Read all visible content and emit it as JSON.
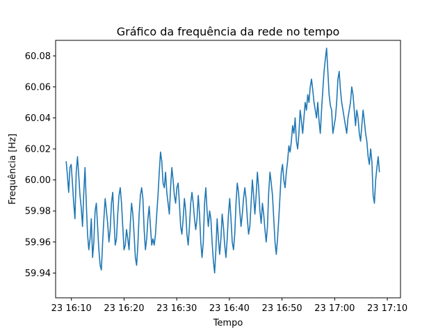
{
  "chart_data": {
    "type": "line",
    "title": "Gráfico da frequência da rede no tempo",
    "xlabel": "Tempo",
    "ylabel": "Frequência [Hz]",
    "x_ticks": [
      "23 16:10",
      "23 16:20",
      "23 16:30",
      "23 16:40",
      "23 16:50",
      "23 17:00",
      "23 17:10"
    ],
    "y_ticks": [
      "59.94",
      "59.96",
      "59.98",
      "60.00",
      "60.02",
      "60.04",
      "60.06",
      "60.08"
    ],
    "x_range_minutes": [
      -3.0,
      62.5
    ],
    "x_tick_minutes": [
      0,
      10,
      20,
      30,
      40,
      50,
      60
    ],
    "ylim": [
      59.924,
      60.09
    ],
    "grid": false,
    "legend": "none",
    "series": [
      {
        "color": "#1f77b4",
        "x_start_minute": -1.0,
        "x_end_minute": 58.5,
        "values": [
          60.012,
          60.003,
          59.992,
          60.008,
          60.01,
          59.998,
          59.985,
          59.975,
          60.005,
          60.015,
          60.003,
          59.99,
          59.982,
          59.97,
          59.992,
          60.008,
          59.985,
          59.965,
          59.955,
          59.962,
          59.975,
          59.95,
          59.96,
          59.98,
          59.985,
          59.97,
          59.955,
          59.945,
          59.942,
          59.96,
          59.975,
          59.988,
          59.98,
          59.972,
          59.96,
          59.968,
          59.985,
          59.992,
          59.975,
          59.958,
          59.962,
          59.978,
          59.99,
          59.995,
          59.985,
          59.97,
          59.955,
          59.958,
          59.968,
          59.962,
          59.955,
          59.972,
          59.985,
          59.978,
          59.965,
          59.95,
          59.945,
          59.958,
          59.978,
          59.99,
          59.995,
          59.988,
          59.968,
          59.955,
          59.962,
          59.975,
          59.983,
          59.97,
          59.958,
          59.962,
          59.958,
          59.965,
          59.978,
          59.99,
          60.005,
          60.018,
          60.012,
          59.998,
          59.995,
          60.005,
          59.992,
          59.985,
          59.978,
          59.995,
          60.008,
          60.0,
          59.99,
          59.985,
          59.995,
          59.998,
          59.985,
          59.97,
          59.965,
          59.975,
          59.988,
          59.98,
          59.965,
          59.958,
          59.97,
          59.985,
          59.992,
          59.985,
          59.975,
          59.968,
          59.975,
          59.99,
          59.978,
          59.96,
          59.95,
          59.96,
          59.985,
          59.995,
          59.98,
          59.97,
          59.98,
          59.975,
          59.96,
          59.948,
          59.94,
          59.955,
          59.975,
          59.962,
          59.952,
          59.962,
          59.978,
          59.97,
          59.958,
          59.95,
          59.962,
          59.978,
          59.988,
          59.975,
          59.96,
          59.955,
          59.965,
          59.985,
          59.998,
          59.992,
          59.98,
          59.97,
          59.978,
          59.988,
          59.995,
          59.988,
          59.975,
          59.965,
          59.97,
          59.985,
          60.0,
          59.99,
          59.978,
          59.99,
          60.005,
          59.995,
          59.98,
          59.972,
          59.985,
          59.978,
          59.968,
          59.96,
          59.97,
          59.992,
          60.005,
          59.998,
          59.99,
          59.975,
          59.96,
          59.952,
          59.962,
          59.975,
          59.99,
          60.005,
          60.01,
          60.0,
          59.995,
          60.005,
          60.012,
          60.022,
          60.018,
          60.025,
          60.035,
          60.03,
          60.04,
          60.025,
          60.02,
          60.03,
          60.045,
          60.038,
          60.03,
          60.04,
          60.05,
          60.045,
          60.055,
          60.05,
          60.06,
          60.065,
          60.058,
          60.05,
          60.045,
          60.04,
          60.05,
          60.038,
          60.03,
          60.045,
          60.058,
          60.07,
          60.078,
          60.085,
          60.07,
          60.055,
          60.048,
          60.045,
          60.03,
          60.035,
          60.04,
          60.05,
          60.065,
          60.07,
          60.058,
          60.05,
          60.045,
          60.04,
          60.035,
          60.03,
          60.04,
          60.045,
          60.05,
          60.06,
          60.055,
          60.045,
          60.035,
          60.045,
          60.04,
          60.03,
          60.025,
          60.035,
          60.045,
          60.038,
          60.03,
          60.025,
          60.015,
          60.01,
          60.02,
          60.012,
          59.99,
          59.985,
          60.0,
          60.008,
          60.015,
          60.005
        ]
      }
    ]
  }
}
